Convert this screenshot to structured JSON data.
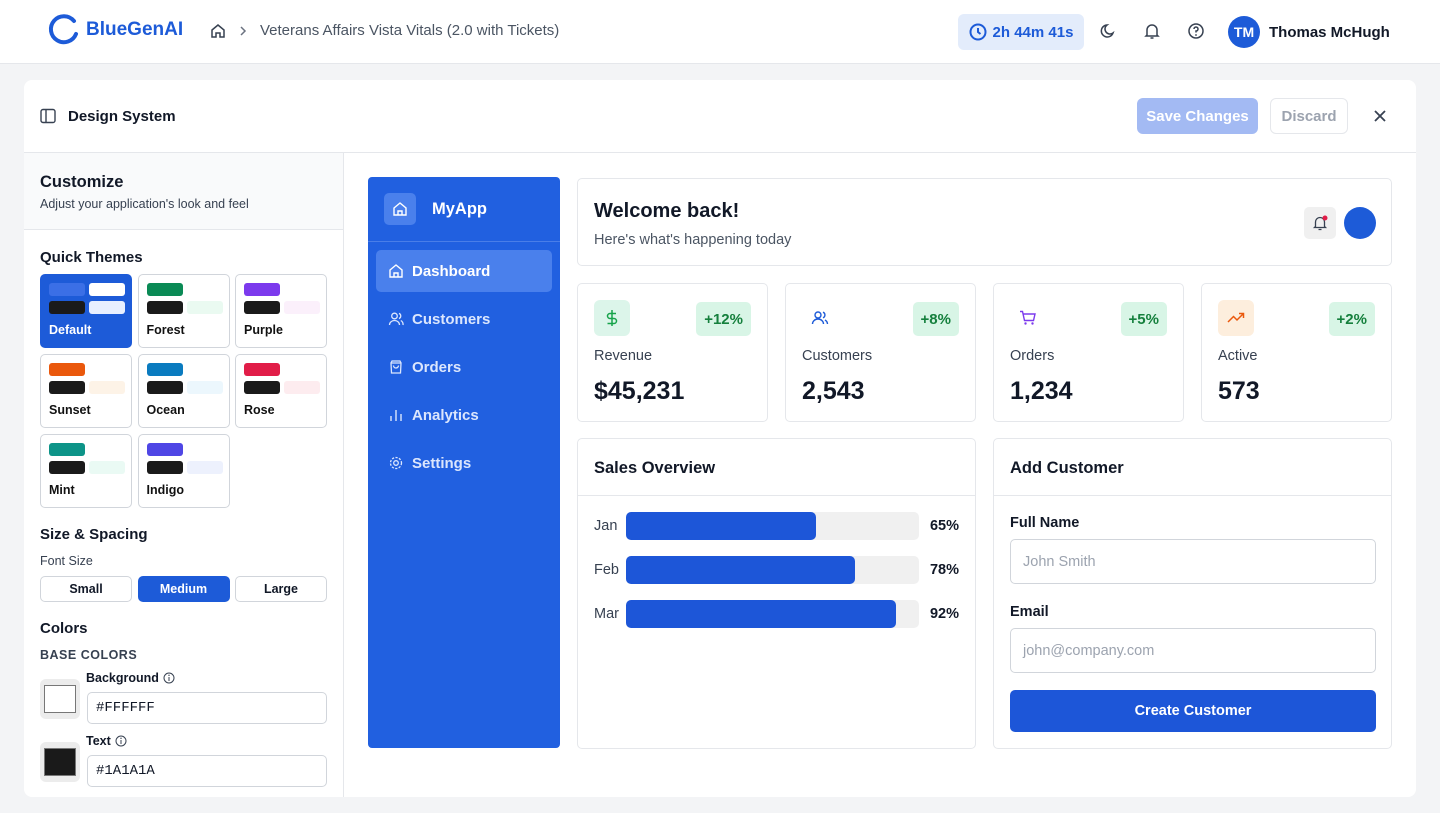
{
  "header": {
    "brand": "BlueGenAI",
    "breadcrumb": "Veterans Affairs Vista Vitals (2.0 with Tickets)",
    "timer": "2h 44m 41s",
    "user_initials": "TM",
    "user_name": "Thomas McHugh"
  },
  "panel": {
    "title": "Design System",
    "save": "Save Changes",
    "discard": "Discard"
  },
  "sidebar": {
    "title": "Customize",
    "subtitle": "Adjust your application's look and feel",
    "quick_themes": {
      "title": "Quick Themes",
      "themes": [
        {
          "name": "Default",
          "colors": [
            "#3b6fe6",
            "#FFFFFF",
            "#1A1A1A",
            "#e8efff"
          ],
          "active": true
        },
        {
          "name": "Forest",
          "colors": [
            "#0a8a55",
            "#FFFFFF",
            "#1A1A1A",
            "#eafaf1"
          ],
          "active": false
        },
        {
          "name": "Purple",
          "colors": [
            "#7c3aed",
            "#FFFFFF",
            "#1A1A1A",
            "#fbf0fb"
          ],
          "active": false
        },
        {
          "name": "Sunset",
          "colors": [
            "#ea580c",
            "#FFFFFF",
            "#1A1A1A",
            "#fdf3e7"
          ],
          "active": false
        },
        {
          "name": "Ocean",
          "colors": [
            "#0a7bbf",
            "#FFFFFF",
            "#1A1A1A",
            "#ecf7fd"
          ],
          "active": false
        },
        {
          "name": "Rose",
          "colors": [
            "#e11d48",
            "#FFFFFF",
            "#1A1A1A",
            "#fdecef"
          ],
          "active": false
        },
        {
          "name": "Mint",
          "colors": [
            "#0d9488",
            "#FFFFFF",
            "#1A1A1A",
            "#eafaf4"
          ],
          "active": false
        },
        {
          "name": "Indigo",
          "colors": [
            "#4f46e5",
            "#FFFFFF",
            "#1A1A1A",
            "#edf1fd"
          ],
          "active": false
        }
      ]
    },
    "size": {
      "title": "Size & Spacing",
      "font_size_label": "Font Size",
      "options": [
        {
          "label": "Small",
          "active": false
        },
        {
          "label": "Medium",
          "active": true
        },
        {
          "label": "Large",
          "active": false
        }
      ]
    },
    "colors": {
      "title": "Colors",
      "section": "BASE COLORS",
      "fields": [
        {
          "label": "Background",
          "value": "#FFFFFF"
        },
        {
          "label": "Text",
          "value": "#1A1A1A"
        }
      ]
    }
  },
  "preview": {
    "app_name": "MyApp",
    "nav": [
      {
        "label": "Dashboard",
        "active": true
      },
      {
        "label": "Customers",
        "active": false
      },
      {
        "label": "Orders",
        "active": false
      },
      {
        "label": "Analytics",
        "active": false
      },
      {
        "label": "Settings",
        "active": false
      }
    ],
    "welcome": {
      "title": "Welcome back!",
      "subtitle": "Here's what's happening today"
    },
    "stats": [
      {
        "label": "Revenue",
        "value": "$45,231",
        "change": "+12%"
      },
      {
        "label": "Customers",
        "value": "2,543",
        "change": "+8%"
      },
      {
        "label": "Orders",
        "value": "1,234",
        "change": "+5%"
      },
      {
        "label": "Active",
        "value": "573",
        "change": "+2%"
      }
    ],
    "sales_overview": {
      "title": "Sales Overview",
      "categories": [
        "Jan",
        "Feb",
        "Mar"
      ],
      "values": [
        65,
        78,
        92
      ],
      "value_labels": [
        "65%",
        "78%",
        "92%"
      ],
      "xlim": [
        0,
        100
      ],
      "color": "#1d56d8"
    },
    "form": {
      "title": "Add Customer",
      "fields": [
        {
          "label": "Full Name",
          "placeholder": "John Smith"
        },
        {
          "label": "Email",
          "placeholder": "john@company.com"
        }
      ],
      "button": "Create Customer"
    }
  }
}
